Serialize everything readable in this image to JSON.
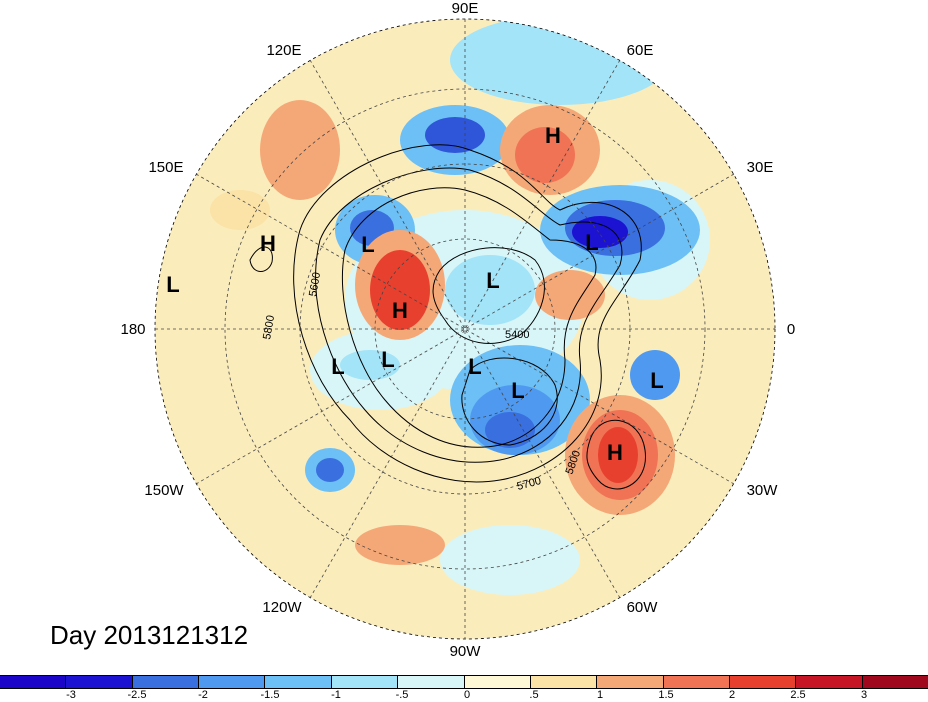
{
  "map": {
    "title": "Day 2013121312",
    "longitude_labels": [
      "90E",
      "60E",
      "30E",
      "0",
      "30W",
      "60W",
      "90W",
      "120W",
      "150W",
      "180",
      "150E",
      "120E"
    ],
    "contour_labels": [
      "5600",
      "5800",
      "5400",
      "5700",
      "5800"
    ],
    "highs_lows": [
      {
        "type": "H"
      },
      {
        "type": "L"
      },
      {
        "type": "H"
      },
      {
        "type": "L"
      },
      {
        "type": "L"
      },
      {
        "type": "L"
      },
      {
        "type": "H"
      },
      {
        "type": "L"
      },
      {
        "type": "L"
      },
      {
        "type": "L"
      },
      {
        "type": "L"
      },
      {
        "type": "L"
      },
      {
        "type": "H"
      }
    ]
  },
  "colorbar": {
    "colors": [
      "#1c12d2",
      "#3a6fe0",
      "#4f9af0",
      "#6dc0f5",
      "#a3e4f8",
      "#d8f6f8",
      "#fff8d6",
      "#fbe2a6",
      "#f5a877",
      "#f07355",
      "#e8402f",
      "#c61525",
      "#a0081d"
    ],
    "labels": [
      "-3",
      "-2.5",
      "-2",
      "-1.5",
      "-1",
      "-.5",
      "0",
      ".5",
      "1",
      "1.5",
      "2",
      "2.5",
      "3"
    ]
  }
}
